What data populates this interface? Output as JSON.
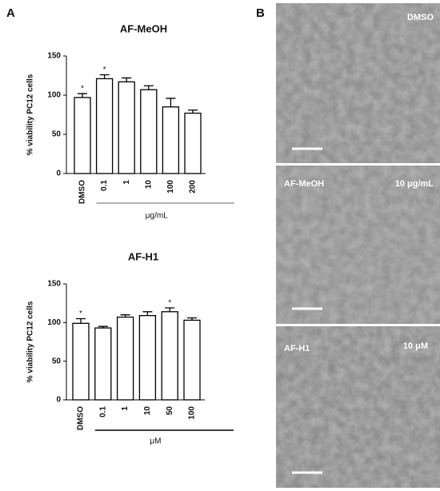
{
  "panel_labels": [
    "A",
    "B"
  ],
  "chart_data": [
    {
      "type": "bar",
      "title": "AF-MeOH",
      "y_label": "% viability PC12 cells",
      "x_label": "μg/mL",
      "categories": [
        "DMSO",
        "0.1",
        "1",
        "10",
        "100",
        "200"
      ],
      "values": [
        97,
        121,
        117,
        107,
        85,
        77
      ],
      "errors": [
        5,
        5,
        5,
        5,
        11,
        4
      ],
      "significance": [
        "*",
        "*",
        null,
        null,
        null,
        null
      ],
      "color": "#ffffff",
      "group_line_color": "#999999",
      "ylim": [
        0,
        150
      ],
      "yticks": [
        0,
        50,
        100,
        150
      ]
    },
    {
      "type": "bar",
      "title": "AF-H1",
      "y_label": "% viability PC12 cells",
      "x_label": "μM",
      "categories": [
        "DMSO",
        "0.1",
        "1",
        "10",
        "50",
        "100"
      ],
      "values": [
        99,
        93,
        107,
        109,
        114,
        103
      ],
      "errors": [
        6,
        2,
        3,
        5,
        5,
        3
      ],
      "significance": [
        "*",
        null,
        null,
        null,
        "*",
        null
      ],
      "color": "#ffffff",
      "group_line_color": "#000000",
      "ylim": [
        0,
        150
      ],
      "yticks": [
        0,
        50,
        100,
        150
      ]
    }
  ],
  "micrographs": [
    {
      "left_label": null,
      "right_label": "DMSO"
    },
    {
      "left_label": "AF-MeOH",
      "right_label": "10 μg/mL"
    },
    {
      "left_label": "AF-H1",
      "right_label": "10 μM"
    }
  ]
}
